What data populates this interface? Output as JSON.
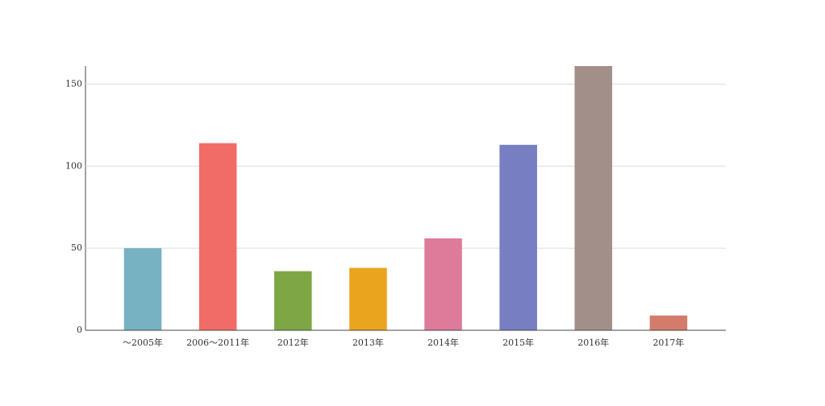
{
  "chart_data": {
    "type": "bar",
    "categories": [
      "～2005年",
      "2006～2011年",
      "2012年",
      "2013年",
      "2014年",
      "2015年",
      "2016年",
      "2017年"
    ],
    "values": [
      50,
      114,
      36,
      38,
      56,
      113,
      161,
      9
    ],
    "colors": [
      "#76b2c1",
      "#f26c67",
      "#7fa645",
      "#eaa41d",
      "#de7b9a",
      "#777fc2",
      "#a38f89",
      "#d37c6b"
    ],
    "ylim": [
      0,
      161
    ],
    "yticks": [
      0,
      50,
      100,
      150
    ],
    "grid": true
  }
}
